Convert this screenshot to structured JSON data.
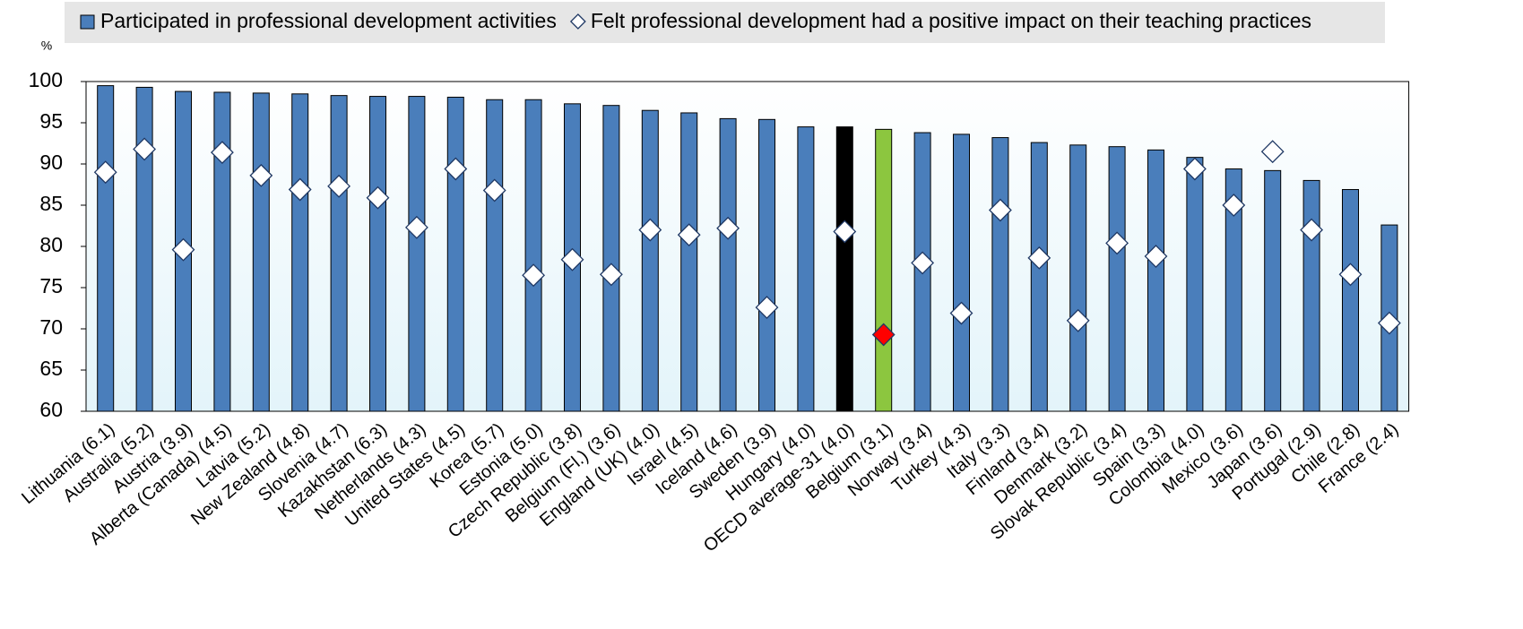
{
  "chart_data": {
    "type": "bar",
    "y_label": "%",
    "categories": [
      "Lithuania (6.1)",
      "Australia (5.2)",
      "Austria  (3.9)",
      "Alberta (Canada) (4.5)",
      "Latvia (5.2)",
      "New Zealand (4.8)",
      "Slovenia (4.7)",
      "Kazakhstan (6.3)",
      "Netherlands (4.3)",
      "United States (4.5)",
      "Korea (5.7)",
      "Estonia (5.0)",
      "Czech Republic (3.8)",
      "Belgium (Fl.) (3.6)",
      "England (UK) (4.0)",
      "Israel (4.5)",
      "Iceland (4.6)",
      "Sweden (3.9)",
      "Hungary (4.0)",
      "OECD average-31 (4.0)",
      "Belgium (3.1)",
      "Norway (3.4)",
      "Turkey (4.3)",
      "Italy (3.3)",
      "Finland (3.4)",
      "Denmark (3.2)",
      "Slovak Republic (3.4)",
      "Spain (3.3)",
      "Colombia (4.0)",
      "Mexico (3.6)",
      "Japan (3.6)",
      "Portugal (2.9)",
      "Chile (2.8)",
      "France (2.4)"
    ],
    "series": [
      {
        "name": "Participated in professional development activities",
        "color": "#4a7ebb",
        "marker": "bar",
        "values": [
          99.5,
          99.3,
          98.8,
          98.7,
          98.6,
          98.5,
          98.3,
          98.2,
          98.2,
          98.1,
          97.8,
          97.8,
          97.3,
          97.1,
          96.5,
          96.2,
          95.5,
          95.4,
          94.5,
          94.5,
          94.2,
          93.8,
          93.6,
          93.2,
          92.6,
          92.3,
          92.1,
          91.7,
          90.8,
          89.4,
          89.2,
          88.0,
          86.9,
          82.6
        ],
        "point_colors": {
          "19": "#000000",
          "20": "#8cc63f"
        }
      },
      {
        "name": "Felt professional development had a positive impact on their teaching practices",
        "color": "#ffffff",
        "marker": "diamond",
        "values": [
          89.0,
          91.8,
          79.6,
          91.4,
          88.6,
          86.9,
          87.3,
          85.9,
          82.3,
          89.4,
          86.8,
          76.5,
          78.4,
          76.6,
          82.0,
          81.4,
          82.2,
          72.6,
          null,
          81.8,
          69.3,
          78.0,
          71.9,
          84.4,
          78.6,
          71.0,
          80.4,
          78.8,
          89.4,
          85.0,
          91.5,
          82.0,
          76.6,
          70.7
        ],
        "point_colors": {
          "20": "#ff0000"
        }
      }
    ],
    "ylim": [
      60,
      100
    ],
    "yticks": [
      60,
      65,
      70,
      75,
      80,
      85,
      90,
      95,
      100
    ]
  }
}
